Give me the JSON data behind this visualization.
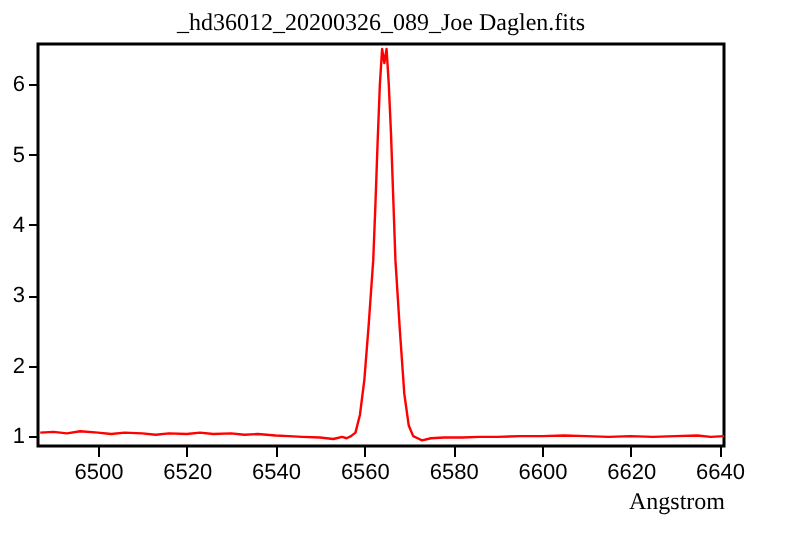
{
  "chart_data": {
    "type": "line",
    "title": "_hd36012_20200326_089_Joe Daglen.fits",
    "xlabel": "Angstrom",
    "x": [
      6487,
      6490,
      6493,
      6496,
      6500,
      6503,
      6506,
      6510,
      6513,
      6516,
      6520,
      6523,
      6526,
      6530,
      6533,
      6536,
      6540,
      6543,
      6546,
      6550,
      6553,
      6555,
      6556,
      6557,
      6558,
      6559,
      6560,
      6561,
      6562,
      6562.5,
      6563,
      6563.5,
      6564,
      6564.5,
      6565,
      6565.5,
      6566,
      6566.5,
      6567,
      6568,
      6569,
      6570,
      6571,
      6572,
      6573,
      6575,
      6578,
      6582,
      6586,
      6590,
      6595,
      6600,
      6605,
      6610,
      6615,
      6620,
      6625,
      6630,
      6635,
      6638,
      6641
    ],
    "series": [
      {
        "color": "#ff0000",
        "values": [
          1.05,
          1.06,
          1.04,
          1.07,
          1.05,
          1.03,
          1.05,
          1.04,
          1.02,
          1.04,
          1.03,
          1.05,
          1.03,
          1.04,
          1.02,
          1.03,
          1.01,
          1.0,
          0.99,
          0.98,
          0.96,
          0.99,
          0.97,
          1.0,
          1.05,
          1.3,
          1.8,
          2.6,
          3.5,
          4.3,
          5.2,
          6.0,
          6.5,
          6.3,
          6.5,
          6.0,
          5.3,
          4.4,
          3.5,
          2.5,
          1.6,
          1.15,
          1.0,
          0.97,
          0.94,
          0.97,
          0.98,
          0.98,
          0.99,
          0.99,
          1.0,
          1.0,
          1.01,
          1.0,
          0.99,
          1.0,
          0.99,
          1.0,
          1.01,
          0.99,
          1.0
        ]
      }
    ],
    "xlim": [
      6486.5,
      6641
    ],
    "xticks": [
      6500,
      6520,
      6540,
      6560,
      6580,
      6600,
      6620,
      6640
    ],
    "ylim": [
      0.86,
      6.57
    ],
    "yticks": [
      1,
      2,
      3,
      4,
      5,
      6
    ],
    "grid": false,
    "legend": false,
    "marker": "none",
    "line_style": "solid"
  }
}
